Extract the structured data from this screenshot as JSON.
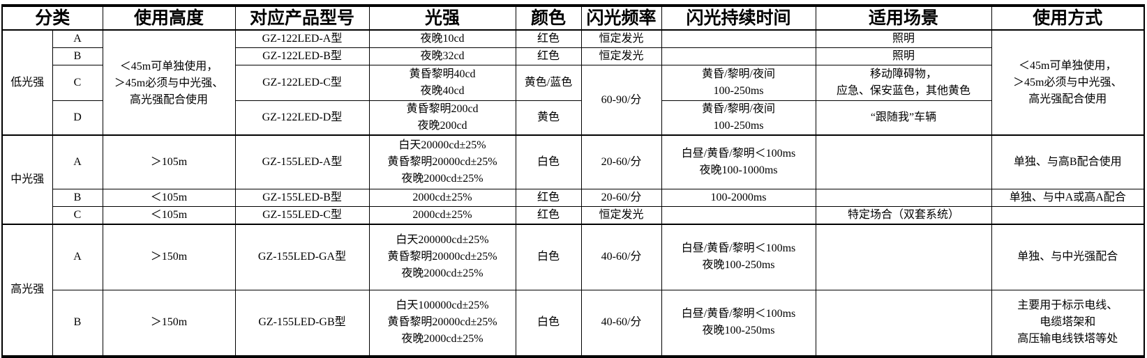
{
  "headers": [
    "分类",
    "使用高度",
    "对应产品型号",
    "光强",
    "颜色",
    "闪光频率",
    "闪光持续时间",
    "适用场景",
    "使用方式"
  ],
  "low": {
    "category": "低光强",
    "height": "＜45m可单独使用，\n＞45m必须与中光强、\n高光强配合使用",
    "usage": "＜45m可单独使用，\n＞45m必须与中光强、\n高光强配合使用",
    "freq_cd": "60-90/分",
    "rows": [
      {
        "sub": "A",
        "model": "GZ-122LED-A型",
        "intensity": "夜晚10cd",
        "color": "红色",
        "freq": "恒定发光",
        "duration": "",
        "scene": "照明"
      },
      {
        "sub": "B",
        "model": "GZ-122LED-B型",
        "intensity": "夜晚32cd",
        "color": "红色",
        "freq": "恒定发光",
        "duration": "",
        "scene": "照明"
      },
      {
        "sub": "C",
        "model": "GZ-122LED-C型",
        "intensity": "黄昏黎明40cd\n夜晚40cd",
        "color": "黄色/蓝色",
        "duration": "黄昏/黎明/夜间\n100-250ms",
        "scene": "移动障碍物，\n应急、保安蓝色，其他黄色"
      },
      {
        "sub": "D",
        "model": "GZ-122LED-D型",
        "intensity": "黄昏黎明200cd\n夜晚200cd",
        "color": "黄色",
        "duration": "黄昏/黎明/夜间\n100-250ms",
        "scene": "“跟随我”车辆"
      }
    ]
  },
  "mid": {
    "category": "中光强",
    "rows": [
      {
        "sub": "A",
        "height": "＞105m",
        "model": "GZ-155LED-A型",
        "intensity": "白天20000cd±25%\n黄昏黎明20000cd±25%\n夜晚2000cd±25%",
        "color": "白色",
        "freq": "20-60/分",
        "duration": "白昼/黄昏/黎明＜100ms\n夜晚100-1000ms",
        "scene": "",
        "usage": "单独、与高B配合使用"
      },
      {
        "sub": "B",
        "height": "＜105m",
        "model": "GZ-155LED-B型",
        "intensity": "2000cd±25%",
        "color": "红色",
        "freq": "20-60/分",
        "duration": "100-2000ms",
        "scene": "",
        "usage": "单独、与中A或高A配合"
      },
      {
        "sub": "C",
        "height": "＜105m",
        "model": "GZ-155LED-C型",
        "intensity": "2000cd±25%",
        "color": "红色",
        "freq": "恒定发光",
        "duration": "",
        "scene": "特定场合（双套系统）",
        "usage": ""
      }
    ]
  },
  "high": {
    "category": "高光强",
    "rows": [
      {
        "sub": "A",
        "height": "＞150m",
        "model": "GZ-155LED-GA型",
        "intensity": "白天200000cd±25%\n黄昏黎明20000cd±25%\n夜晚2000cd±25%",
        "color": "白色",
        "freq": "40-60/分",
        "duration": "白昼/黄昏/黎明＜100ms\n夜晚100-250ms",
        "scene": "",
        "usage": "单独、与中光强配合"
      },
      {
        "sub": "B",
        "height": "＞150m",
        "model": "GZ-155LED-GB型",
        "intensity": "白天100000cd±25%\n黄昏黎明20000cd±25%\n夜晚2000cd±25%",
        "color": "白色",
        "freq": "40-60/分",
        "duration": "白昼/黄昏/黎明＜100ms\n夜晚100-250ms",
        "scene": "",
        "usage": "主要用于标示电线、\n电缆塔架和\n高压输电线铁塔等处"
      }
    ]
  }
}
